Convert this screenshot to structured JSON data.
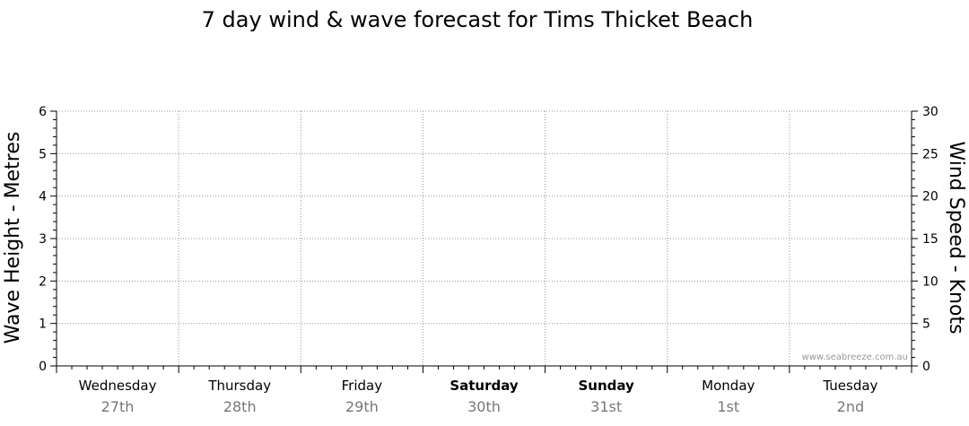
{
  "chart_data": {
    "type": "line",
    "title": "7 day wind & wave forecast for Tims Thicket Beach",
    "ylabel_left": "Wave Height - Metres",
    "ylabel_right": "Wind Speed - Knots",
    "ylim_left": [
      0,
      6
    ],
    "ylim_right": [
      0,
      30
    ],
    "left_ticks": [
      0,
      1,
      2,
      3,
      4,
      5,
      6
    ],
    "right_ticks": [
      0,
      5,
      10,
      15,
      20,
      25,
      30
    ],
    "days": [
      {
        "day": "Wednesday",
        "date": "27th",
        "bold": false
      },
      {
        "day": "Thursday",
        "date": "28th",
        "bold": false
      },
      {
        "day": "Friday",
        "date": "29th",
        "bold": false
      },
      {
        "day": "Saturday",
        "date": "30th",
        "bold": true
      },
      {
        "day": "Sunday",
        "date": "31st",
        "bold": true
      },
      {
        "day": "Monday",
        "date": "1st",
        "bold": false
      },
      {
        "day": "Tuesday",
        "date": "2nd",
        "bold": false
      }
    ],
    "grid": true,
    "series": [],
    "watermark": "www.seabreeze.com.au"
  }
}
